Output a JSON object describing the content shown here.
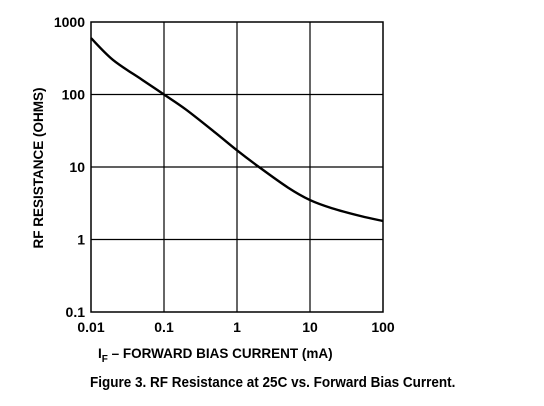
{
  "chart_data": {
    "type": "line",
    "xscale": "log",
    "yscale": "log",
    "xlim": [
      0.01,
      100
    ],
    "ylim": [
      0.1,
      1000
    ],
    "x_ticks": [
      "0.01",
      "0.1",
      "1",
      "10",
      "100"
    ],
    "y_ticks": [
      "0.1",
      "1",
      "10",
      "100",
      "1000"
    ],
    "grid": true,
    "xlabel_prefix": "I",
    "xlabel_subscript": "F",
    "xlabel": " – FORWARD BIAS CURRENT (mA)",
    "ylabel": "RF RESISTANCE (OHMS)",
    "series": [
      {
        "x": [
          0.01,
          0.02,
          0.05,
          0.1,
          0.2,
          0.5,
          1,
          2,
          5,
          10,
          20,
          50,
          100
        ],
        "y": [
          600,
          300,
          160,
          100,
          62,
          30,
          17,
          10,
          5.2,
          3.5,
          2.7,
          2.1,
          1.8
        ]
      }
    ]
  },
  "caption": "Figure 3.  RF Resistance at 25C vs. Forward Bias Current."
}
